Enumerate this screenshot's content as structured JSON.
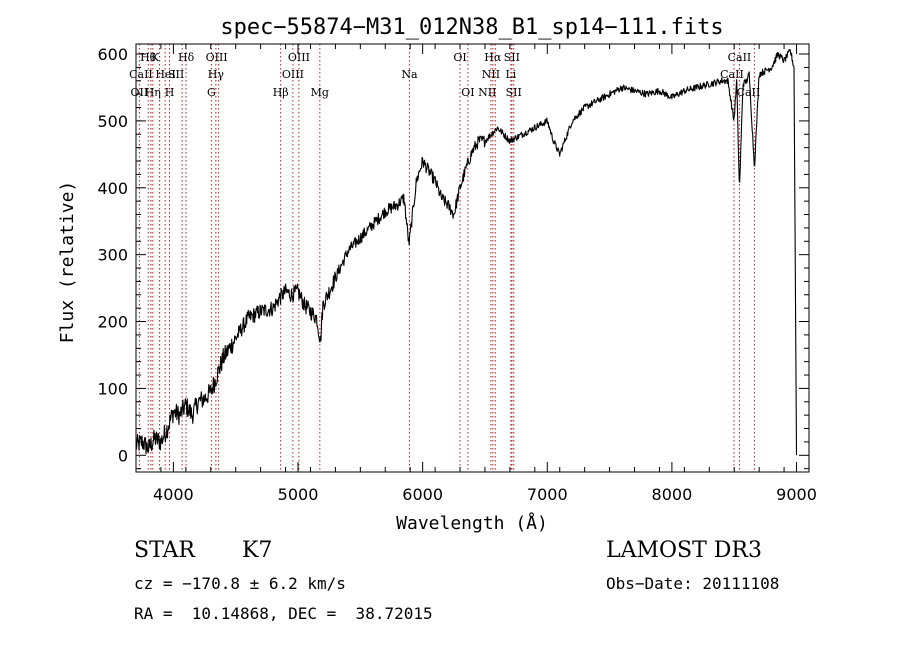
{
  "chart_data": {
    "type": "line",
    "title": "spec−55874−M31_012N38_B1_sp14−111.fits",
    "xlabel": "Wavelength (Å)",
    "ylabel": "Flux (relative)",
    "xlim": [
      3700,
      9100
    ],
    "ylim": [
      -25,
      615
    ],
    "xticks": [
      4000,
      5000,
      6000,
      7000,
      8000,
      9000
    ],
    "xtick_labels": [
      "4000",
      "5000",
      "6000",
      "7000",
      "8000",
      "9000"
    ],
    "yticks": [
      0,
      100,
      200,
      300,
      400,
      500,
      600
    ],
    "ytick_labels": [
      "0",
      "100",
      "200",
      "300",
      "400",
      "500",
      "600"
    ],
    "grid": false,
    "series": [
      {
        "name": "spectrum",
        "x": [
          3700,
          3750,
          3800,
          3850,
          3900,
          3950,
          4000,
          4050,
          4100,
          4150,
          4200,
          4250,
          4300,
          4350,
          4400,
          4450,
          4500,
          4600,
          4700,
          4800,
          4850,
          4900,
          4950,
          5000,
          5050,
          5100,
          5150,
          5180,
          5200,
          5300,
          5400,
          5500,
          5600,
          5700,
          5800,
          5850,
          5890,
          5950,
          6000,
          6050,
          6100,
          6150,
          6200,
          6250,
          6300,
          6350,
          6400,
          6450,
          6500,
          6550,
          6600,
          6650,
          6700,
          6800,
          6900,
          7000,
          7050,
          7100,
          7150,
          7200,
          7300,
          7400,
          7500,
          7600,
          7700,
          7800,
          7900,
          8000,
          8100,
          8200,
          8300,
          8400,
          8450,
          8498,
          8520,
          8542,
          8570,
          8600,
          8620,
          8662,
          8700,
          8800,
          8850,
          8900,
          8950,
          8980,
          9000
        ],
        "y": [
          15,
          20,
          10,
          25,
          20,
          40,
          65,
          60,
          75,
          60,
          80,
          85,
          95,
          120,
          145,
          160,
          175,
          205,
          215,
          220,
          235,
          245,
          240,
          245,
          225,
          215,
          205,
          170,
          225,
          265,
          305,
          325,
          345,
          365,
          375,
          385,
          315,
          410,
          440,
          425,
          410,
          385,
          375,
          360,
          400,
          430,
          455,
          470,
          470,
          480,
          490,
          480,
          470,
          480,
          490,
          500,
          470,
          450,
          475,
          500,
          520,
          530,
          540,
          550,
          545,
          540,
          545,
          535,
          545,
          550,
          555,
          560,
          560,
          500,
          560,
          395,
          555,
          560,
          570,
          430,
          570,
          580,
          600,
          590,
          605,
          580,
          0
        ]
      }
    ],
    "lines": [
      {
        "name": "H-theta",
        "wavelength": 3798,
        "label": "Hθ",
        "row": 0,
        "dx": 0
      },
      {
        "name": "OII",
        "wavelength": 3727,
        "label": "OII",
        "row": 2,
        "dx": 0
      },
      {
        "name": "CaII-H2",
        "wavelength": 3820,
        "label": "CaII",
        "row": 1,
        "dx": -10
      },
      {
        "name": "H-eta",
        "wavelength": 3835,
        "label": "Hη",
        "row": 2,
        "dx": 0
      },
      {
        "name": "CaII-K",
        "wavelength": 3934,
        "label": "K",
        "row": 0,
        "dx": -10
      },
      {
        "name": "HeI",
        "wavelength": 3889,
        "label": "HeI",
        "row": 1,
        "dx": 6
      },
      {
        "name": "CaII-H",
        "wavelength": 3969,
        "label": "H",
        "row": 2,
        "dx": 0
      },
      {
        "name": "SII-blue",
        "wavelength": 4070,
        "label": "SII",
        "row": 1,
        "dx": -6
      },
      {
        "name": "H-delta",
        "wavelength": 4102,
        "label": "Hδ",
        "row": 0,
        "dx": 0
      },
      {
        "name": "G-band",
        "wavelength": 4305,
        "label": "G",
        "row": 2,
        "dx": 0
      },
      {
        "name": "H-gamma",
        "wavelength": 4341,
        "label": "Hγ",
        "row": 1,
        "dx": 0
      },
      {
        "name": "OIII-4363",
        "wavelength": 4363,
        "label": "OIII",
        "row": 0,
        "dx": -2
      },
      {
        "name": "H-beta",
        "wavelength": 4861,
        "label": "Hβ",
        "row": 2,
        "dx": 0
      },
      {
        "name": "OIII-4959",
        "wavelength": 4959,
        "label": "OIII",
        "row": 1,
        "dx": 0
      },
      {
        "name": "OIII-5007",
        "wavelength": 5007,
        "label": "OIII",
        "row": 0,
        "dx": 0
      },
      {
        "name": "Mg",
        "wavelength": 5175,
        "label": "Mg",
        "row": 2,
        "dx": 0
      },
      {
        "name": "Na",
        "wavelength": 5894,
        "label": "Na",
        "row": 1,
        "dx": 0
      },
      {
        "name": "OI-6300",
        "wavelength": 6300,
        "label": "OI",
        "row": 0,
        "dx": 0
      },
      {
        "name": "OI-6363",
        "wavelength": 6363,
        "label": "OI",
        "row": 2,
        "dx": 0
      },
      {
        "name": "NII-6548",
        "wavelength": 6548,
        "label": "NII",
        "row": 1,
        "dx": 0
      },
      {
        "name": "H-alpha",
        "wavelength": 6563,
        "label": "Hα",
        "row": 0,
        "dx": 0
      },
      {
        "name": "NII-6583",
        "wavelength": 6583,
        "label": "NII",
        "row": 2,
        "dx": -8
      },
      {
        "name": "Li",
        "wavelength": 6708,
        "label": "Li",
        "row": 1,
        "dx": 0
      },
      {
        "name": "SII-6716",
        "wavelength": 6716,
        "label": "SII",
        "row": 0,
        "dx": 0
      },
      {
        "name": "SII-6731",
        "wavelength": 6731,
        "label": "SII",
        "row": 2,
        "dx": 0
      },
      {
        "name": "CaII-8498",
        "wavelength": 8498,
        "label": "CaII",
        "row": 1,
        "dx": -2
      },
      {
        "name": "CaII-8542",
        "wavelength": 8542,
        "label": "CaII",
        "row": 0,
        "dx": 0
      },
      {
        "name": "CaII-8662",
        "wavelength": 8662,
        "label": "CaII",
        "row": 2,
        "dx": -6
      }
    ],
    "line_color": "#b22222",
    "spectrum_color": "#000000"
  },
  "info": {
    "object_class": "STAR",
    "subclass": "K7",
    "survey": "LAMOST DR3",
    "redshift": "cz = −170.8 ± 6.2 km/s",
    "obs_date": "Obs−Date: 20111108",
    "coords": "RA =  10.14868, DEC =  38.72015"
  }
}
